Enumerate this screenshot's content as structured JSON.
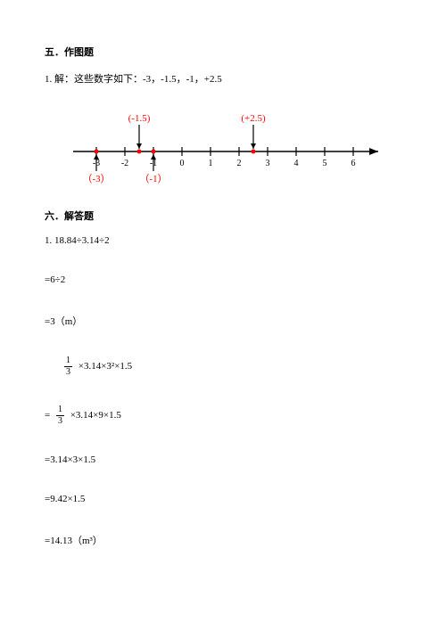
{
  "section5": {
    "title": "五．作图题",
    "q1": "1. 解：这些数字如下：-3，-1.5，-1，+2.5"
  },
  "numberline": {
    "ticks": [
      "-3",
      "-2",
      "-1",
      "0",
      "1",
      "2",
      "3",
      "4",
      "5",
      "6"
    ],
    "topMarks": [
      {
        "label": "(-1.5)",
        "x": -1.5,
        "color": "#ff0000"
      },
      {
        "label": "(+2.5)",
        "x": 2.5,
        "color": "#ff0000"
      }
    ],
    "bottomMarks": [
      {
        "label": "（-3）",
        "x": -3,
        "color": "#ff0000"
      },
      {
        "label": "（-1）",
        "x": -1,
        "color": "#ff0000"
      }
    ],
    "axisColor": "#000000",
    "dotColor": "#ff0000",
    "tickFont": 10
  },
  "section6": {
    "title": "六．解答题",
    "l1": "1. 18.84÷3.14÷2",
    "l2": "=6÷2",
    "l3": "=3（m）",
    "l4_tail": " ×3.14×3²×1.5",
    "l5_pre": "=  ",
    "l5_tail": " ×3.14×9×1.5",
    "l6": "=3.14×3×1.5",
    "l7": "=9.42×1.5",
    "l8": "=14.13（m³）",
    "frac": {
      "num": "1",
      "den": "3"
    }
  }
}
